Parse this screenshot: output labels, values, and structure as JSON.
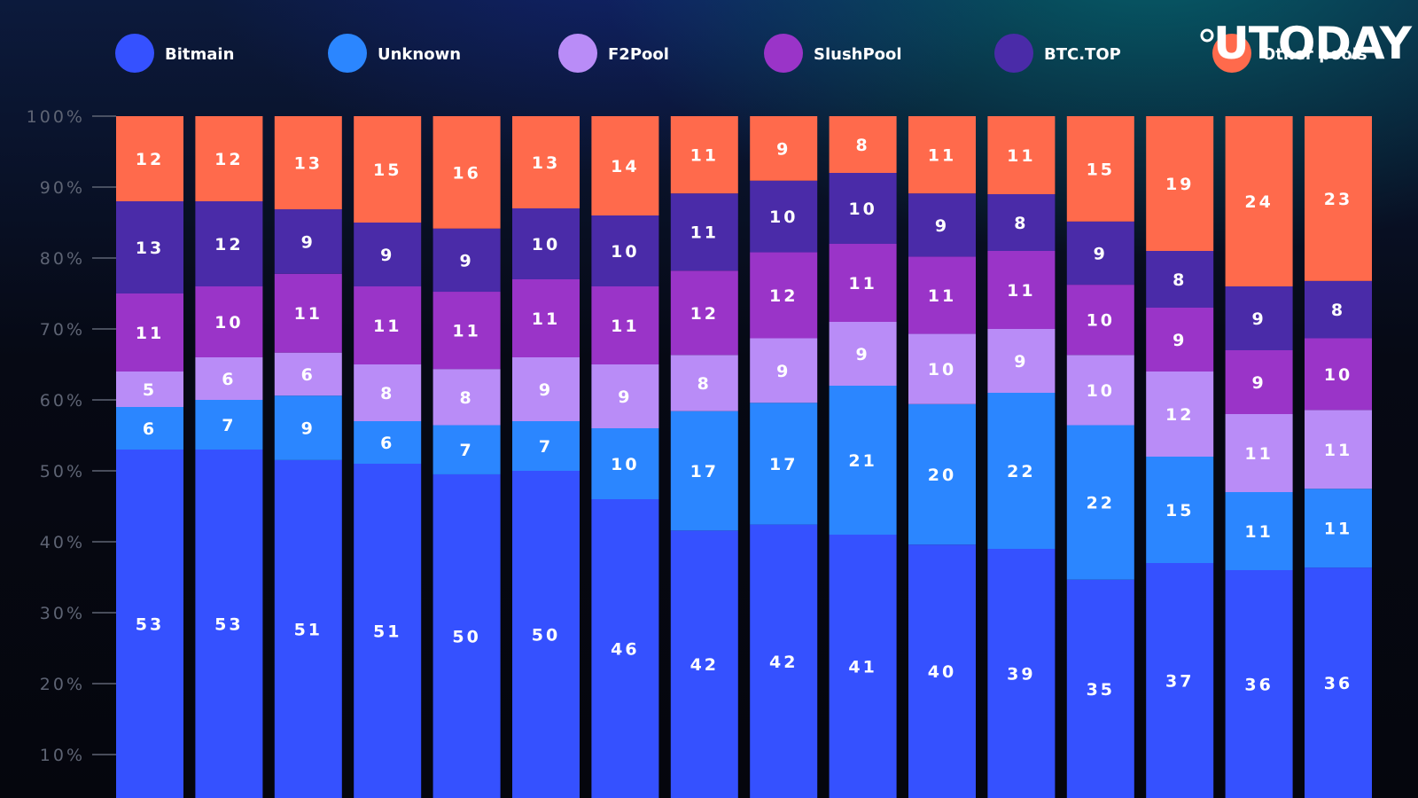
{
  "logo": {
    "text": "UTODAY"
  },
  "chart_data": {
    "type": "bar",
    "stacked": true,
    "title": "",
    "xlabel": "",
    "ylabel": "",
    "ylim": [
      0,
      100
    ],
    "yticks": [
      10,
      20,
      30,
      40,
      50,
      60,
      70,
      80,
      90,
      100
    ],
    "ytick_labels": [
      "10%",
      "20%",
      "30%",
      "40%",
      "50%",
      "60%",
      "70%",
      "80%",
      "90%",
      "100%"
    ],
    "grid": false,
    "legend_position": "top",
    "categories": [
      "",
      "",
      "",
      "",
      "",
      "",
      "",
      "",
      "",
      "",
      "",
      "",
      "",
      "",
      "",
      ""
    ],
    "series": [
      {
        "name": "Bitmain",
        "color": "#3551ff",
        "values": [
          53,
          53,
          51,
          51,
          50,
          50,
          46,
          42,
          42,
          41,
          40,
          39,
          35,
          37,
          36,
          36
        ]
      },
      {
        "name": "Unknown",
        "color": "#2b86ff",
        "values": [
          6,
          7,
          9,
          6,
          7,
          7,
          10,
          17,
          17,
          21,
          20,
          22,
          22,
          15,
          11,
          11
        ]
      },
      {
        "name": "F2Pool",
        "color": "#b98cf7",
        "values": [
          5,
          6,
          6,
          8,
          8,
          9,
          9,
          8,
          9,
          9,
          10,
          9,
          10,
          12,
          11,
          11
        ]
      },
      {
        "name": "SlushPool",
        "color": "#9a34c8",
        "values": [
          11,
          10,
          11,
          11,
          11,
          11,
          11,
          12,
          12,
          11,
          11,
          11,
          10,
          9,
          9,
          10
        ]
      },
      {
        "name": "BTC.TOP",
        "color": "#4a2ba8",
        "values": [
          13,
          12,
          9,
          9,
          9,
          10,
          10,
          11,
          10,
          10,
          9,
          8,
          9,
          8,
          9,
          8
        ]
      },
      {
        "name": "Other pools",
        "color": "#ff6a4c",
        "values": [
          12,
          12,
          13,
          15,
          16,
          13,
          14,
          11,
          9,
          8,
          11,
          11,
          15,
          19,
          24,
          23
        ]
      }
    ]
  }
}
